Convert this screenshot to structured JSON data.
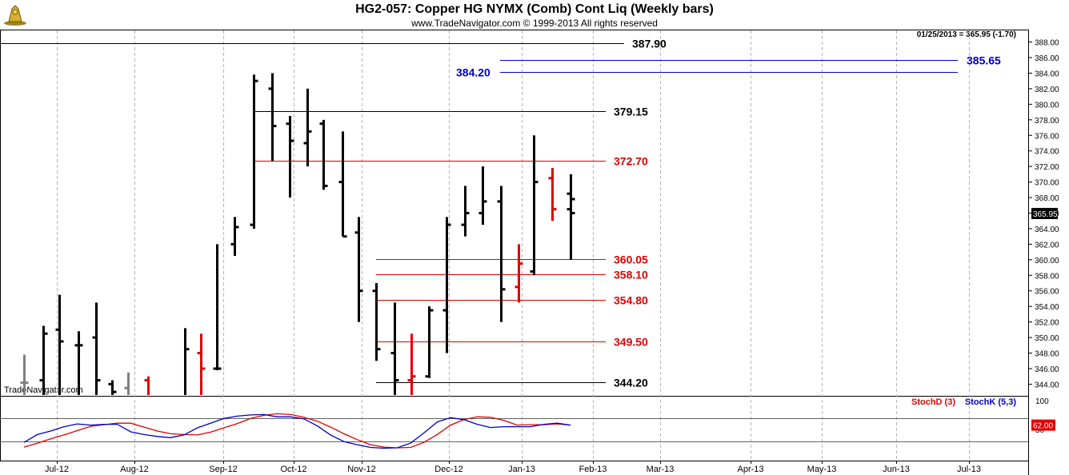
{
  "header": {
    "title": "HG2-057:  Copper HG NYMX (Comb) Cont Liq  (Weekly bars)",
    "subtitle": "www.TradeNavigator.com © 1999-2013 All rights reserved",
    "last_quote": "01/25/2013 = 365.95 (-1.70)",
    "watermark": "TradeNavigator.com"
  },
  "colors": {
    "up_bar": "#000000",
    "down_bar": "#e00000",
    "old_bar": "#808080",
    "blue_line": "#0000c8",
    "red_line": "#e00000",
    "grid": "#b4b4b4"
  },
  "chart_data": [
    {
      "type": "ohlc",
      "title": "HG2-057:  Copper HG NYMX (Comb) Cont Liq  (Weekly bars)",
      "ylim": [
        342.5,
        389.5
      ],
      "y_ticks": [
        "388.00",
        "386.00",
        "384.00",
        "382.00",
        "380.00",
        "378.00",
        "376.00",
        "374.00",
        "372.00",
        "370.00",
        "368.00",
        "366.00",
        "364.00",
        "362.00",
        "360.00",
        "358.00",
        "356.00",
        "354.00",
        "352.00",
        "350.00",
        "348.00",
        "346.00",
        "344.00"
      ],
      "x_ticks": [
        "Jul-12",
        "Aug-12",
        "Sep-12",
        "Oct-12",
        "Nov-12",
        "Dec-12",
        "Jan-13",
        "Feb-13",
        "Mar-13",
        "Apr-13",
        "May-13",
        "Jun-13",
        "Jul-13"
      ],
      "last_price": "365.95",
      "bars": [
        {
          "o": 344.2,
          "h": 347.8,
          "l": 342.0,
          "c": 344.2,
          "color": "old"
        },
        {
          "o": 344.5,
          "h": 351.5,
          "l": 340.0,
          "c": 350.5,
          "color": "up"
        },
        {
          "o": 351.0,
          "h": 355.5,
          "l": 341.0,
          "c": 349.5,
          "color": "up"
        },
        {
          "o": 349.0,
          "h": 350.8,
          "l": 340.0,
          "c": 349.0,
          "color": "up"
        },
        {
          "o": 350.0,
          "h": 354.5,
          "l": 340.0,
          "c": 344.5,
          "color": "up"
        },
        {
          "o": 344.0,
          "h": 344.5,
          "l": 342.5,
          "c": 343.0,
          "color": "up"
        },
        {
          "o": 343.5,
          "h": 345.5,
          "l": 342.0,
          "c": 342.5,
          "color": "old"
        },
        {
          "o": 344.5,
          "h": 345.0,
          "l": 342.0,
          "c": 342.5,
          "color": "down"
        },
        {
          "o": 342.5,
          "h": 351.2,
          "l": 342.0,
          "c": 348.5,
          "color": "up"
        },
        {
          "o": 348.0,
          "h": 350.5,
          "l": 342.5,
          "c": 346.0,
          "color": "down"
        },
        {
          "o": 346.0,
          "h": 362.0,
          "l": 345.8,
          "c": 346.0,
          "color": "up"
        },
        {
          "o": 362.0,
          "h": 365.5,
          "l": 360.5,
          "c": 364.2,
          "color": "up"
        },
        {
          "o": 364.5,
          "h": 383.8,
          "l": 364.0,
          "c": 383.0,
          "color": "up"
        },
        {
          "o": 382.0,
          "h": 384.0,
          "l": 372.7,
          "c": 377.2,
          "color": "up"
        },
        {
          "o": 377.5,
          "h": 378.5,
          "l": 368.0,
          "c": 375.3,
          "color": "up"
        },
        {
          "o": 375.0,
          "h": 382.0,
          "l": 372.0,
          "c": 376.5,
          "color": "up"
        },
        {
          "o": 377.5,
          "h": 378.0,
          "l": 369.0,
          "c": 369.5,
          "color": "up"
        },
        {
          "o": 370.0,
          "h": 376.5,
          "l": 363.0,
          "c": 363.0,
          "color": "up"
        },
        {
          "o": 363.5,
          "h": 365.5,
          "l": 352.0,
          "c": 356.0,
          "color": "up"
        },
        {
          "o": 356.0,
          "h": 357.0,
          "l": 347.0,
          "c": 348.5,
          "color": "up"
        },
        {
          "o": 348.0,
          "h": 354.5,
          "l": 342.0,
          "c": 344.5,
          "color": "up"
        },
        {
          "o": 344.5,
          "h": 350.5,
          "l": 342.5,
          "c": 345.0,
          "color": "down"
        },
        {
          "o": 345.0,
          "h": 354.0,
          "l": 344.8,
          "c": 353.5,
          "color": "up"
        },
        {
          "o": 353.5,
          "h": 365.5,
          "l": 348.0,
          "c": 364.5,
          "color": "up"
        },
        {
          "o": 364.5,
          "h": 369.5,
          "l": 363.0,
          "c": 366.0,
          "color": "up"
        },
        {
          "o": 366.0,
          "h": 372.0,
          "l": 364.5,
          "c": 367.5,
          "color": "up"
        },
        {
          "o": 367.5,
          "h": 369.5,
          "l": 352.0,
          "c": 356.2,
          "color": "up"
        },
        {
          "o": 356.5,
          "h": 362.0,
          "l": 354.5,
          "c": 359.5,
          "color": "down"
        },
        {
          "o": 358.5,
          "h": 376.0,
          "l": 358.0,
          "c": 370.0,
          "color": "up"
        },
        {
          "o": 370.5,
          "h": 371.8,
          "l": 365.0,
          "c": 366.5,
          "color": "down"
        },
        {
          "o": 366.5,
          "h": 370.0,
          "l": 360.0,
          "c": 367.8,
          "color": "up"
        },
        {
          "o": 368.5,
          "h": 371.0,
          "l": 364.0,
          "c": 366.0,
          "color": "up"
        }
      ],
      "hlines": [
        {
          "y": 387.9,
          "label": "387.90",
          "color": "#000000"
        },
        {
          "y": 385.65,
          "label": "385.65",
          "color": "#0000c8"
        },
        {
          "y": 384.2,
          "label": "384.20",
          "color": "#0000c8"
        },
        {
          "y": 379.15,
          "label": "379.15",
          "color": "#000000"
        },
        {
          "y": 372.7,
          "label": "372.70",
          "color": "#e00000"
        },
        {
          "y": 360.05,
          "label": "360.05",
          "color": "#e00000"
        },
        {
          "y": 358.1,
          "label": "358.10",
          "color": "#e00000"
        },
        {
          "y": 354.8,
          "label": "354.80",
          "color": "#e00000"
        },
        {
          "y": 349.5,
          "label": "349.50",
          "color": "#e00000"
        },
        {
          "y": 344.2,
          "label": "344.20",
          "color": "#000000"
        }
      ]
    },
    {
      "type": "line",
      "title": "",
      "ylim": [
        0,
        100
      ],
      "y_ticks": [
        "100",
        "50"
      ],
      "last_value": "62.00",
      "series": [
        {
          "name": "StochD (3)",
          "color": "#e00000",
          "values": [
            6,
            16,
            27,
            37,
            48,
            59,
            63,
            67,
            67,
            57,
            47,
            40,
            38,
            37,
            44,
            55,
            66,
            79,
            87,
            91,
            89,
            82,
            72,
            57,
            40,
            25,
            12,
            6,
            4,
            5,
            18,
            38,
            62,
            76,
            83,
            82,
            74,
            62,
            63,
            63,
            65,
            62
          ]
        },
        {
          "name": "StochK (5,3)",
          "color": "#0000c8",
          "values": [
            18,
            38,
            47,
            58,
            65,
            62,
            64,
            64,
            45,
            38,
            33,
            30,
            37,
            55,
            67,
            79,
            85,
            88,
            89,
            83,
            83,
            78,
            60,
            37,
            20,
            12,
            5,
            3,
            4,
            16,
            42,
            70,
            81,
            76,
            64,
            56,
            58,
            58,
            58,
            64,
            67,
            62
          ]
        }
      ],
      "hlines": [
        80,
        20
      ]
    }
  ]
}
